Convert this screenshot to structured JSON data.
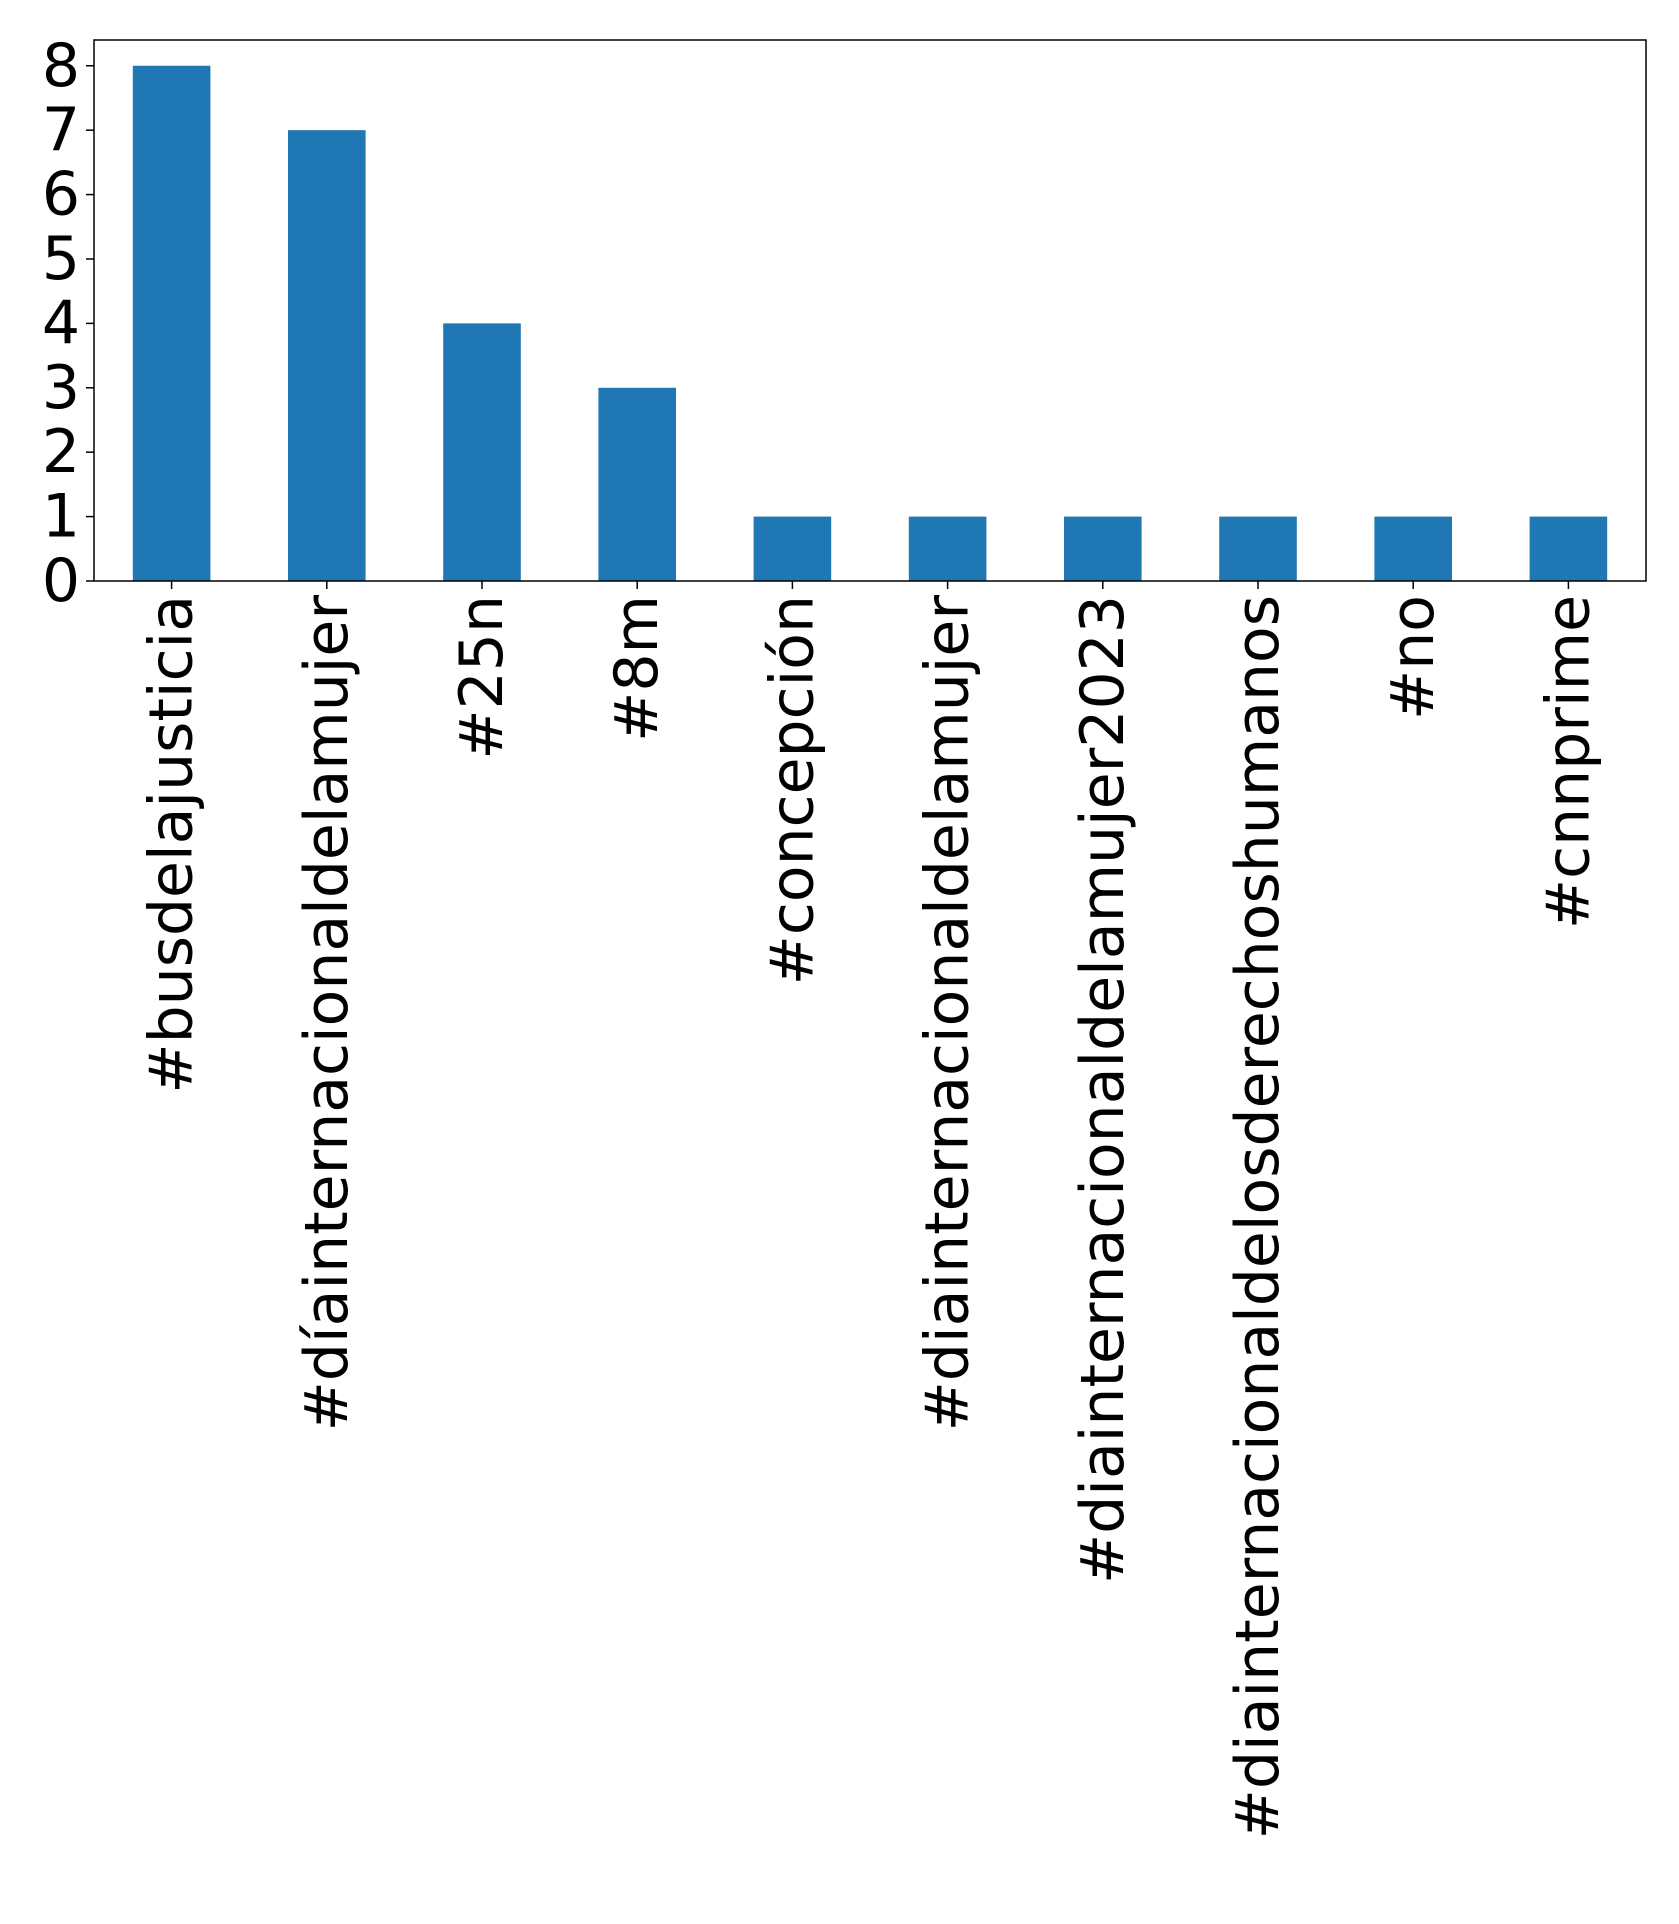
{
  "chart_data": {
    "type": "bar",
    "title": "",
    "xlabel": "",
    "ylabel": "",
    "categories": [
      "#busdelajusticia",
      "#díainternacionaldelamujer",
      "#25n",
      "#8m",
      "#concepción",
      "#diainternacionaldelamujer",
      "#diainternacionaldelamujer2023",
      "#diainternacionaldelosderechoshumanos",
      "#no",
      "#cnnprime"
    ],
    "values": [
      8,
      7,
      4,
      3,
      1,
      1,
      1,
      1,
      1,
      1
    ],
    "ylim": [
      0,
      8.4
    ],
    "yticks": [
      0,
      1,
      2,
      3,
      4,
      5,
      6,
      7,
      8
    ],
    "grid": false,
    "legend": "none",
    "bar_color": "#1f77b4"
  }
}
